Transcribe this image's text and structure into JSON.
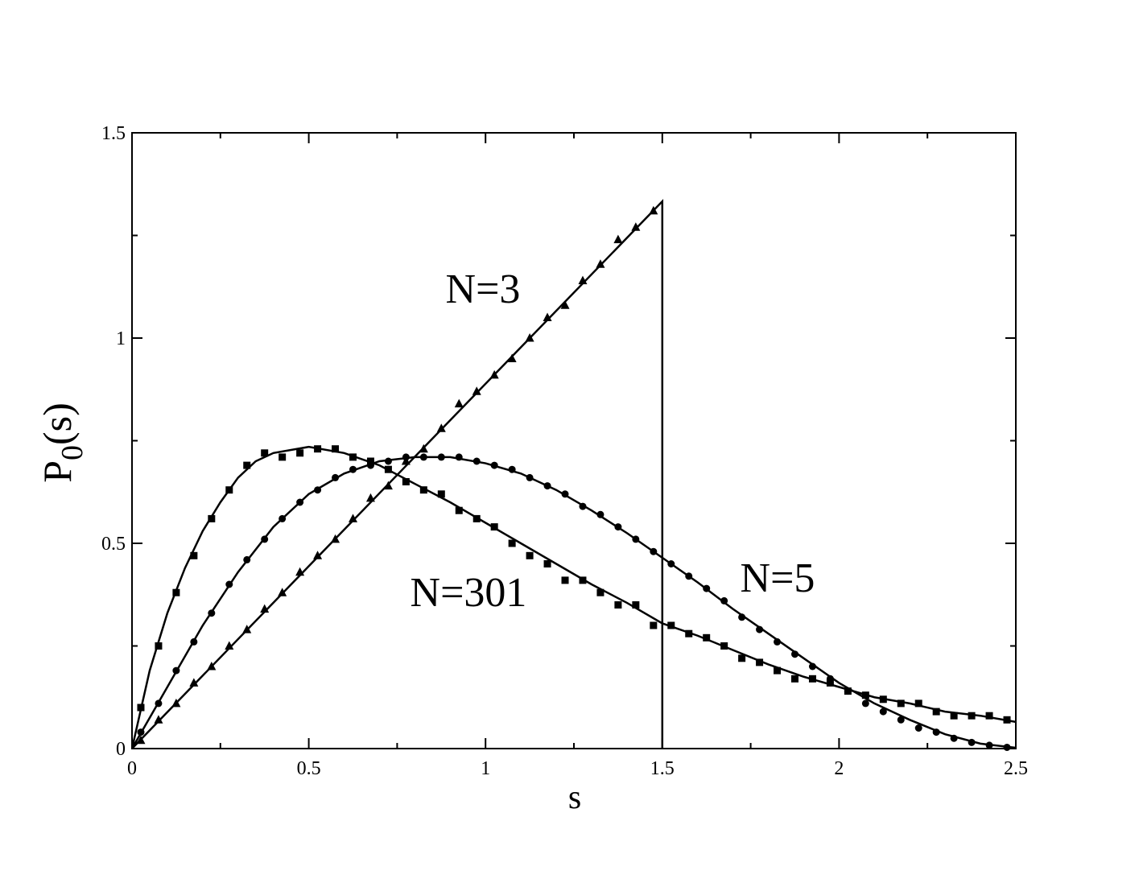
{
  "chart_data": {
    "type": "scatter",
    "xlabel": "s",
    "ylabel_parts": [
      "P",
      "0",
      "(s)"
    ],
    "annotations": [
      "N=3",
      "N=5",
      "N=301"
    ],
    "xlim": [
      0,
      2.5
    ],
    "ylim": [
      0,
      1.5
    ],
    "xticks": [
      0,
      0.5,
      1,
      1.5,
      2,
      2.5
    ],
    "yticks": [
      0,
      0.5,
      1,
      1.5
    ],
    "xminorticks": [
      0.25,
      0.75,
      1.25,
      1.75,
      2.25
    ],
    "yminorticks": [
      0.25,
      0.75,
      1.25
    ],
    "color": "#000000",
    "series": [
      {
        "marker": "triangle",
        "x": [
          0.025,
          0.075,
          0.125,
          0.175,
          0.225,
          0.275,
          0.325,
          0.375,
          0.425,
          0.475,
          0.525,
          0.575,
          0.625,
          0.675,
          0.725,
          0.775,
          0.825,
          0.875,
          0.925,
          0.975,
          1.025,
          1.075,
          1.125,
          1.175,
          1.225,
          1.275,
          1.325,
          1.375,
          1.425,
          1.475
        ],
        "values": [
          0.02,
          0.07,
          0.11,
          0.16,
          0.2,
          0.25,
          0.29,
          0.34,
          0.38,
          0.43,
          0.47,
          0.51,
          0.56,
          0.61,
          0.64,
          0.7,
          0.73,
          0.78,
          0.84,
          0.87,
          0.91,
          0.95,
          1.0,
          1.05,
          1.08,
          1.14,
          1.18,
          1.24,
          1.27,
          1.31
        ]
      },
      {
        "marker": "circle",
        "x": [
          0.025,
          0.075,
          0.125,
          0.175,
          0.225,
          0.275,
          0.325,
          0.375,
          0.425,
          0.475,
          0.525,
          0.575,
          0.625,
          0.675,
          0.725,
          0.775,
          0.825,
          0.875,
          0.925,
          0.975,
          1.025,
          1.075,
          1.125,
          1.175,
          1.225,
          1.275,
          1.325,
          1.375,
          1.425,
          1.475,
          1.525,
          1.575,
          1.625,
          1.675,
          1.725,
          1.775,
          1.825,
          1.875,
          1.925,
          1.975,
          2.025,
          2.075,
          2.125,
          2.175,
          2.225,
          2.275,
          2.325,
          2.375,
          2.425,
          2.475
        ],
        "values": [
          0.04,
          0.11,
          0.19,
          0.26,
          0.33,
          0.4,
          0.46,
          0.51,
          0.56,
          0.6,
          0.63,
          0.66,
          0.68,
          0.69,
          0.7,
          0.71,
          0.71,
          0.71,
          0.71,
          0.7,
          0.69,
          0.68,
          0.66,
          0.64,
          0.62,
          0.59,
          0.57,
          0.54,
          0.51,
          0.48,
          0.45,
          0.42,
          0.39,
          0.36,
          0.32,
          0.29,
          0.26,
          0.23,
          0.2,
          0.17,
          0.14,
          0.11,
          0.09,
          0.07,
          0.05,
          0.04,
          0.025,
          0.015,
          0.008,
          0.003
        ]
      },
      {
        "marker": "square",
        "x": [
          0.025,
          0.075,
          0.125,
          0.175,
          0.225,
          0.275,
          0.325,
          0.375,
          0.425,
          0.475,
          0.525,
          0.575,
          0.625,
          0.675,
          0.725,
          0.775,
          0.825,
          0.875,
          0.925,
          0.975,
          1.025,
          1.075,
          1.125,
          1.175,
          1.225,
          1.275,
          1.325,
          1.375,
          1.425,
          1.475,
          1.525,
          1.575,
          1.625,
          1.675,
          1.725,
          1.775,
          1.825,
          1.875,
          1.925,
          1.975,
          2.025,
          2.075,
          2.125,
          2.175,
          2.225,
          2.275,
          2.325,
          2.375,
          2.425,
          2.475
        ],
        "values": [
          0.1,
          0.25,
          0.38,
          0.47,
          0.56,
          0.63,
          0.69,
          0.72,
          0.71,
          0.72,
          0.73,
          0.73,
          0.71,
          0.7,
          0.68,
          0.65,
          0.63,
          0.62,
          0.58,
          0.56,
          0.54,
          0.5,
          0.47,
          0.45,
          0.41,
          0.41,
          0.38,
          0.35,
          0.35,
          0.3,
          0.3,
          0.28,
          0.27,
          0.25,
          0.22,
          0.21,
          0.19,
          0.17,
          0.17,
          0.16,
          0.14,
          0.13,
          0.12,
          0.11,
          0.11,
          0.09,
          0.08,
          0.08,
          0.08,
          0.07
        ]
      }
    ],
    "curves": [
      {
        "x": [
          0,
          1.5,
          1.5
        ],
        "values": [
          0,
          1.333,
          0
        ]
      },
      {
        "x": [
          0,
          0.1,
          0.2,
          0.3,
          0.4,
          0.5,
          0.6,
          0.7,
          0.8,
          0.9,
          1.0,
          1.1,
          1.2,
          1.3,
          1.4,
          1.5,
          1.6,
          1.7,
          1.8,
          1.9,
          2.0,
          2.1,
          2.2,
          2.3,
          2.4,
          2.5
        ],
        "values": [
          0,
          0.15,
          0.3,
          0.43,
          0.54,
          0.62,
          0.67,
          0.7,
          0.71,
          0.71,
          0.695,
          0.67,
          0.63,
          0.58,
          0.525,
          0.465,
          0.405,
          0.34,
          0.28,
          0.22,
          0.16,
          0.11,
          0.07,
          0.035,
          0.012,
          0.002
        ]
      },
      {
        "x": [
          0,
          0.05,
          0.1,
          0.15,
          0.2,
          0.25,
          0.3,
          0.35,
          0.4,
          0.5,
          0.6,
          0.7,
          0.8,
          0.9,
          1.0,
          1.1,
          1.2,
          1.3,
          1.4,
          1.5,
          1.6,
          1.7,
          1.8,
          1.9,
          2.0,
          2.1,
          2.2,
          2.3,
          2.4,
          2.5
        ],
        "values": [
          0,
          0.19,
          0.33,
          0.44,
          0.53,
          0.6,
          0.66,
          0.7,
          0.72,
          0.735,
          0.72,
          0.69,
          0.645,
          0.6,
          0.55,
          0.5,
          0.45,
          0.4,
          0.355,
          0.305,
          0.275,
          0.24,
          0.205,
          0.175,
          0.15,
          0.125,
          0.11,
          0.09,
          0.08,
          0.065
        ]
      }
    ]
  }
}
